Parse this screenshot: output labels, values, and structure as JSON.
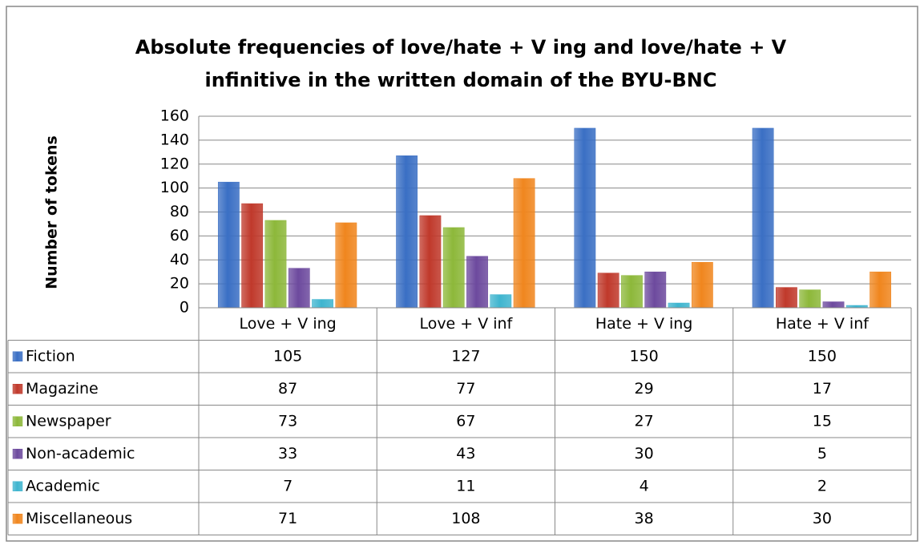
{
  "chart_data": {
    "type": "bar",
    "title_lines": [
      "Absolute frequencies of love/hate + V ing and love/hate + V",
      "infinitive in the written domain of the BYU-BNC"
    ],
    "y_label": "Number of tokens",
    "categories": [
      "Love + V ing",
      "Love + V inf",
      "Hate + V ing",
      "Hate + V inf"
    ],
    "series": [
      {
        "name": "Fiction",
        "color": "#3a6fc4",
        "values": [
          105,
          127,
          150,
          150
        ]
      },
      {
        "name": "Magazine",
        "color": "#c0392b",
        "values": [
          87,
          77,
          29,
          17
        ]
      },
      {
        "name": "Newspaper",
        "color": "#8db83a",
        "values": [
          73,
          67,
          27,
          15
        ]
      },
      {
        "name": "Non-academic",
        "color": "#6d4a9e",
        "values": [
          33,
          43,
          30,
          5
        ]
      },
      {
        "name": "Academic",
        "color": "#3fb5cf",
        "values": [
          7,
          11,
          4,
          2
        ]
      },
      {
        "name": "Miscellaneous",
        "color": "#f0861e",
        "values": [
          71,
          108,
          38,
          30
        ]
      }
    ],
    "ylim": [
      0,
      160
    ],
    "yticks": [
      0,
      20,
      40,
      60,
      80,
      100,
      120,
      140,
      160
    ],
    "grid": true,
    "legend": "table"
  }
}
